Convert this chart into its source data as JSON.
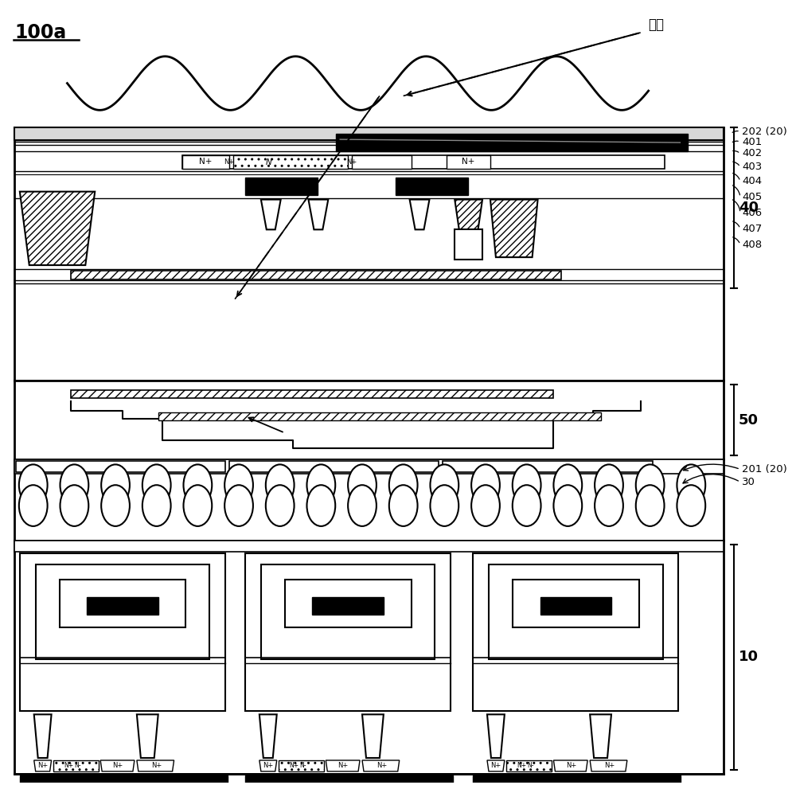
{
  "title": "100a",
  "label_finger": "手指",
  "bg_color": "#ffffff",
  "line_color": "#000000",
  "label_202": "202 (20)",
  "label_401": "401",
  "label_402": "402",
  "label_403": "403",
  "label_404": "404",
  "label_405": "405",
  "label_406": "406",
  "label_407": "407",
  "label_408": "408",
  "label_40": "40",
  "label_50": "50",
  "label_10": "10",
  "label_30": "30",
  "label_201": "201 (20)"
}
